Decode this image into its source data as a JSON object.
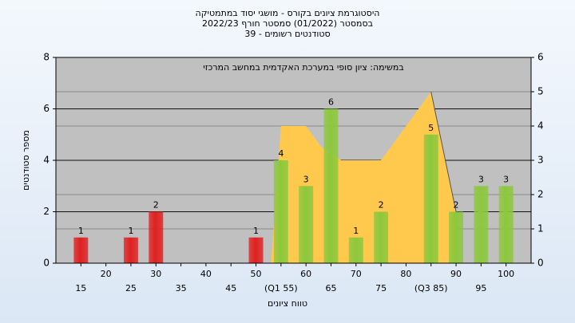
{
  "chart_data": {
    "type": "bar",
    "title": [
      "היסטוגרמת ציונים בקורס - מושגי יסוד במתמטיקה",
      "בסמסטר (01/2022) סמסטר חורף 2022/23",
      "סטודנטים רשומים - 39"
    ],
    "annotation": "במשימה: ציון סופי במערכת האקדמית במחשב המרכזי",
    "ylabel": "מספר סטודנטים",
    "xlabel": "טווח ציונים",
    "x": [
      15,
      20,
      25,
      30,
      35,
      40,
      45,
      50,
      55,
      60,
      65,
      70,
      75,
      80,
      85,
      90,
      95,
      100
    ],
    "values": [
      1,
      0,
      1,
      2,
      0,
      0,
      0,
      1,
      4,
      3,
      6,
      1,
      2,
      0,
      5,
      2,
      3,
      3
    ],
    "colors": [
      "#e02020",
      "#e02020",
      "#e02020",
      "#e02020",
      "#e02020",
      "#e02020",
      "#e02020",
      "#e02020",
      "#8cc83c",
      "#8cc83c",
      "#8cc83c",
      "#8cc83c",
      "#8cc83c",
      "#8cc83c",
      "#8cc83c",
      "#8cc83c",
      "#8cc83c",
      "#8cc83c"
    ],
    "area": {
      "axis": "y2",
      "color": "#ffc94d",
      "x": [
        53,
        55,
        60,
        63,
        67,
        75,
        85,
        90
      ],
      "values": [
        0,
        4,
        4,
        3.4,
        3,
        3,
        5,
        1.5
      ]
    },
    "xlim": [
      10,
      105
    ],
    "xticks": [
      15,
      20,
      25,
      30,
      35,
      40,
      45,
      50,
      {
        "value": 55,
        "label": "(Q1 55)"
      },
      60,
      65,
      70,
      75,
      80,
      {
        "value": 85,
        "label": "(Q3 85)"
      },
      90,
      95,
      100
    ],
    "ylim": [
      0,
      8
    ],
    "yticks": [
      0,
      2,
      4,
      6,
      8
    ],
    "y2lim": [
      0,
      6
    ],
    "y2ticks": [
      0,
      1,
      2,
      3,
      4,
      5,
      6
    ],
    "grid": true
  }
}
